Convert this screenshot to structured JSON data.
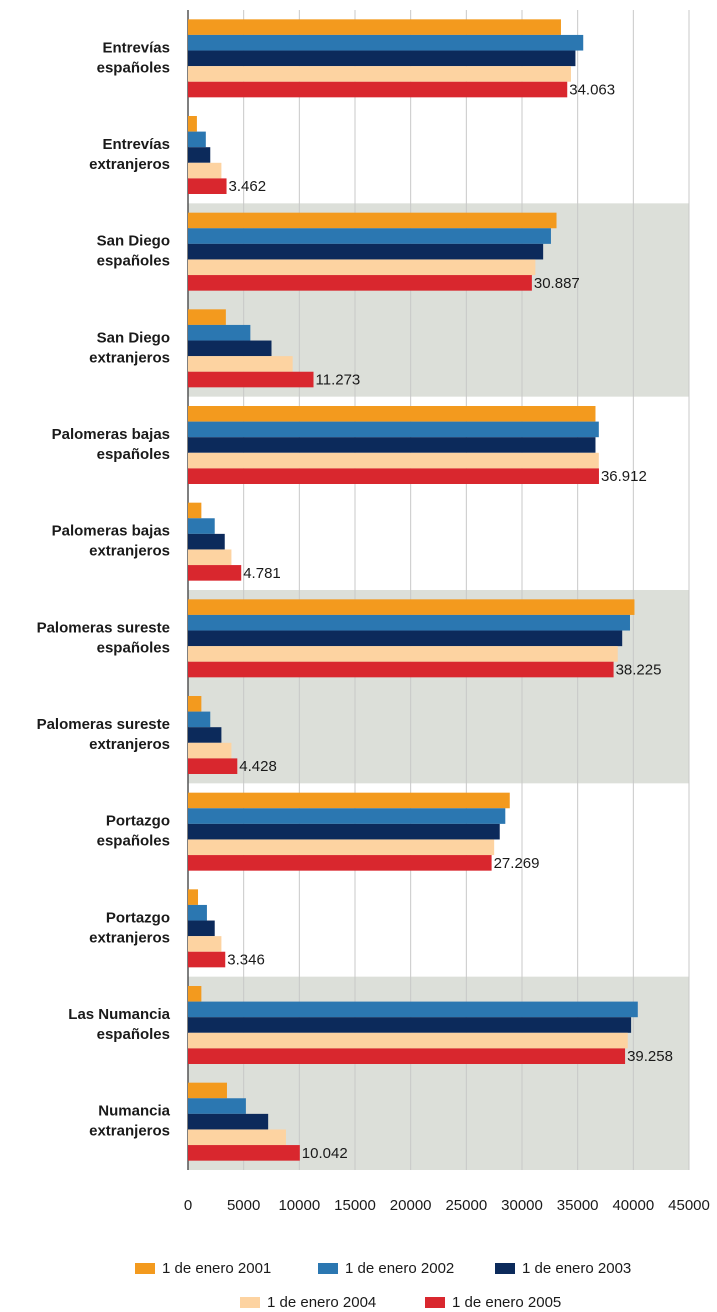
{
  "chart_data": {
    "type": "barh",
    "categories": [
      "Entrevías españoles",
      "Entrevías extranjeros",
      "San Diego españoles",
      "San Diego extranjeros",
      "Palomeras bajas españoles",
      "Palomeras bajas extranjeros",
      "Palomeras sureste españoles",
      "Palomeras sureste extranjeros",
      "Portazgo españoles",
      "Portazgo extranjeros",
      "Las Numancia españoles",
      "Numancia extranjeros"
    ],
    "series": [
      {
        "name": "1 de enero 2001",
        "color": "#f39a1e",
        "values": [
          33500,
          800,
          33100,
          3400,
          36600,
          1200,
          40100,
          1200,
          28900,
          900,
          1200,
          3500
        ]
      },
      {
        "name": "1 de enero 2002",
        "color": "#2b77b1",
        "values": [
          35500,
          1600,
          32600,
          5600,
          36900,
          2400,
          39700,
          2000,
          28500,
          1700,
          40400,
          5200
        ]
      },
      {
        "name": "1 de enero 2003",
        "color": "#0c2a5b",
        "values": [
          34800,
          2000,
          31900,
          7500,
          36600,
          3300,
          39000,
          3000,
          28000,
          2400,
          39800,
          7200
        ]
      },
      {
        "name": "1 de enero 2004",
        "color": "#fdd3a1",
        "values": [
          34400,
          3000,
          31200,
          9400,
          36900,
          3900,
          38600,
          3900,
          27500,
          3000,
          39500,
          8800
        ]
      },
      {
        "name": "1 de enero 2005",
        "color": "#d9272e",
        "values": [
          34063,
          3462,
          30887,
          11273,
          36912,
          4781,
          38225,
          4428,
          27269,
          3346,
          39258,
          10042
        ],
        "value_labels": [
          "34.063",
          "3.462",
          "30.887",
          "11.273",
          "36.912",
          "4.781",
          "38.225",
          "4.428",
          "27.269",
          "3.346",
          "39.258",
          "10.042"
        ]
      }
    ],
    "xlim": [
      0,
      45000
    ],
    "xticks": [
      0,
      5000,
      10000,
      15000,
      20000,
      25000,
      30000,
      35000,
      40000,
      45000
    ],
    "grid": true,
    "legend": "bottom",
    "band_color": "#dcdfd9"
  }
}
